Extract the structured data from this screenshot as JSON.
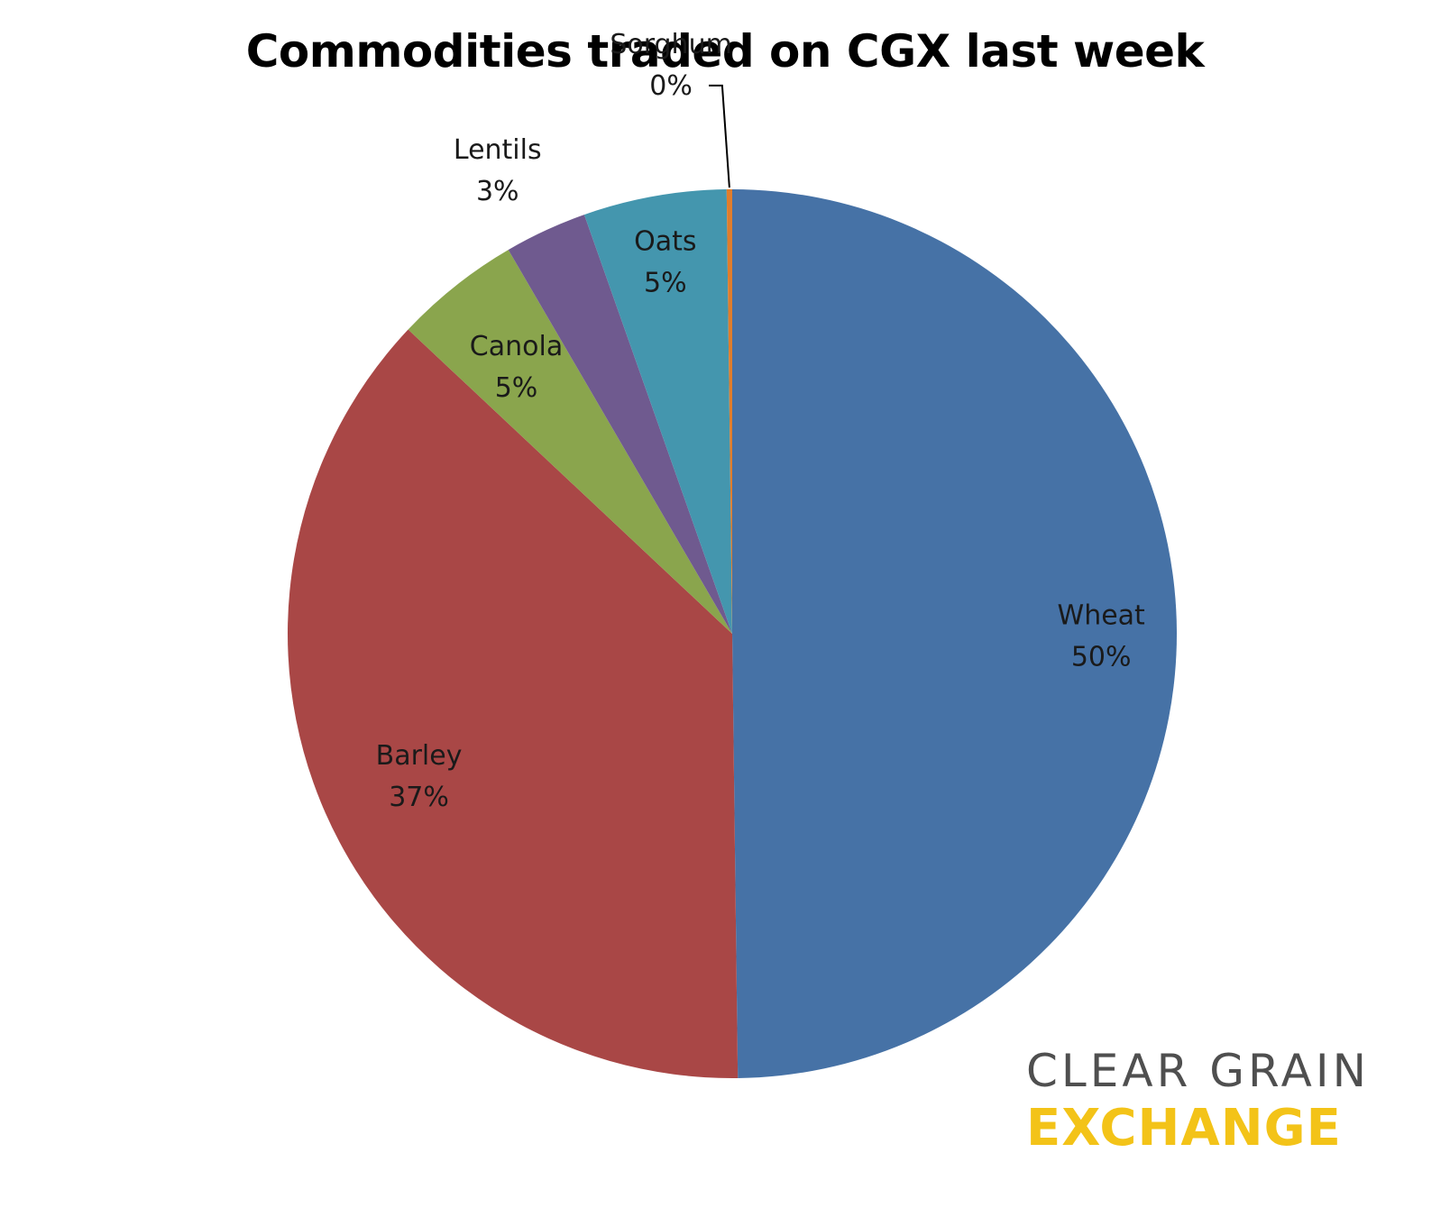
{
  "chart_data": {
    "type": "pie",
    "title": "Commodities traded on CGX last week",
    "slices": [
      {
        "label": "Wheat",
        "percent_label": "50%",
        "value": 49.8,
        "color": "#4672a6"
      },
      {
        "label": "Barley",
        "percent_label": "37%",
        "value": 37.2,
        "color": "#a94746"
      },
      {
        "label": "Canola",
        "percent_label": "5%",
        "value": 4.6,
        "color": "#8aa54d"
      },
      {
        "label": "Lentils",
        "percent_label": "3%",
        "value": 3.0,
        "color": "#6f5a8f"
      },
      {
        "label": "Oats",
        "percent_label": "5%",
        "value": 5.2,
        "color": "#4496ae"
      },
      {
        "label": "Sorghum",
        "percent_label": "0%",
        "value": 0.2,
        "color": "#e07d2c"
      }
    ],
    "start": "12 o'clock",
    "direction": "clockwise",
    "legend": "none"
  },
  "logo": {
    "line1": "CLEAR GRAIN",
    "line2": "EXCHANGE",
    "line1_color": "#4f4f4f",
    "line2_color": "#f3c318"
  }
}
